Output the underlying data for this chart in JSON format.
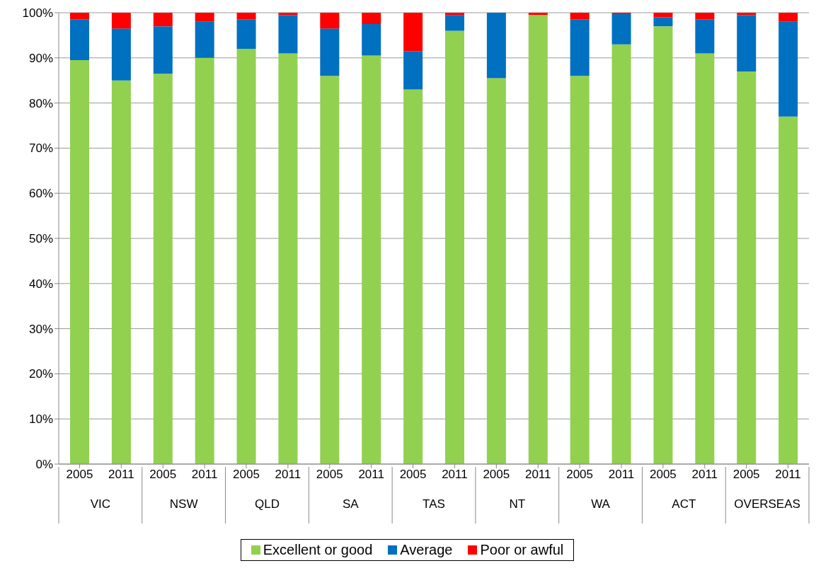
{
  "chart_data": {
    "type": "bar",
    "stacked": true,
    "categories": [
      "2005",
      "2011",
      "2005",
      "2011",
      "2005",
      "2011",
      "2005",
      "2011",
      "2005",
      "2011",
      "2005",
      "2011",
      "2005",
      "2011",
      "2005",
      "2011",
      "2005",
      "2011"
    ],
    "annotations": [
      "VIC",
      "NSW",
      "QLD",
      "SA",
      "TAS",
      "NT",
      "WA",
      "ACT",
      "OVERSEAS"
    ],
    "series": [
      {
        "name": "Excellent or good",
        "color": "#92d050",
        "values": [
          89.5,
          85,
          86.5,
          90,
          92,
          91,
          86,
          90.5,
          83,
          96,
          85.5,
          99.5,
          86,
          93,
          97,
          91,
          87,
          77
        ]
      },
      {
        "name": "Average",
        "color": "#0070c0",
        "values": [
          9,
          11.5,
          10.5,
          8,
          6.5,
          8.5,
          10.5,
          7,
          8.5,
          3.5,
          14.5,
          0,
          12.5,
          6.7,
          2,
          7.5,
          12.5,
          21
        ]
      },
      {
        "name": "Poor or awful",
        "color": "#ff0000",
        "values": [
          1.5,
          3.5,
          3,
          2,
          1.5,
          0.5,
          3.5,
          2.5,
          8.5,
          0.5,
          0,
          0.5,
          1.5,
          0.3,
          1,
          1.5,
          0.5,
          2
        ]
      }
    ],
    "ylim": [
      0,
      100
    ],
    "yticks": [
      {
        "value": 0,
        "label": "0%"
      },
      {
        "value": 10,
        "label": "10%"
      },
      {
        "value": 20,
        "label": "20%"
      },
      {
        "value": 30,
        "label": "30%"
      },
      {
        "value": 40,
        "label": "40%"
      },
      {
        "value": 50,
        "label": "50%"
      },
      {
        "value": 60,
        "label": "60%"
      },
      {
        "value": 70,
        "label": "70%"
      },
      {
        "value": 80,
        "label": "80%"
      },
      {
        "value": 90,
        "label": "90%"
      },
      {
        "value": 100,
        "label": "100%"
      }
    ],
    "grid": "y",
    "legend": "bottom"
  }
}
